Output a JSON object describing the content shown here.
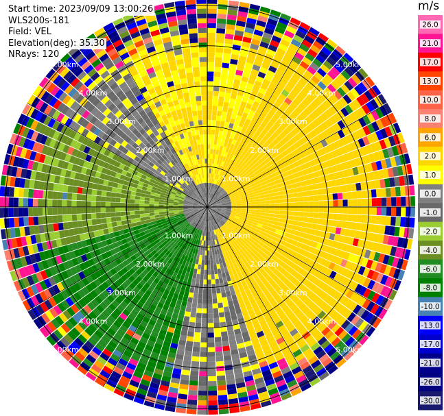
{
  "header": {
    "start_time": "Start time: 2023/09/09 13:00:26",
    "instrument": "WLS200s-181",
    "field": "Field: VEL",
    "elevation": "Elevation(deg): 35.30",
    "nrays": "NRays: 120"
  },
  "colorbar": {
    "unit": "m/s",
    "labels": [
      "26.0",
      "21.0",
      "17.0",
      "13.0",
      "10.0",
      "8.0",
      "6.0",
      "2.0",
      "1.0",
      "0.0",
      "-1.0",
      "-2.0",
      "-4.0",
      "-6.0",
      "-8.0",
      "-10.0",
      "-13.0",
      "-17.0",
      "-21.0",
      "-26.0",
      "-30.0"
    ],
    "colors": [
      "#ff69b4",
      "#ff1493",
      "#ff0000",
      "#ff4500",
      "#ff6347",
      "#fa8072",
      "#ffa500",
      "#ffd700",
      "#ffff00",
      "#808080",
      "#696969",
      "#9acd32",
      "#6b8e23",
      "#228b22",
      "#008000",
      "#4682b4",
      "#0000ff",
      "#0000cd",
      "#00008b",
      "#000080",
      "#191970"
    ]
  },
  "chart_data": {
    "type": "heatmap",
    "projection": "polar PPI",
    "field": "VEL",
    "nrays": 120,
    "elevation_deg": 35.3,
    "range_ring_labels": [
      "1.00km",
      "2.00km",
      "3.00km",
      "4.00km",
      "5.00km"
    ],
    "ring_ranges_km": [
      1,
      2,
      3,
      4,
      5
    ],
    "color_scale": {
      "unit": "m/s",
      "min": -30,
      "max": 26
    },
    "sectors": [
      {
        "region": "north-northeast to east",
        "dominant_value_ms": 2,
        "color_name": "yellow/orange"
      },
      {
        "region": "east to south-east",
        "dominant_value_ms": 4,
        "color_name": "orange/yellow"
      },
      {
        "region": "south-west to west",
        "dominant_value_ms": -6,
        "color_name": "green"
      },
      {
        "region": "west to north-west",
        "dominant_value_ms": -2,
        "color_name": "olive/yellow-green"
      },
      {
        "region": "near-zero band",
        "dominant_value_ms": 0,
        "color_name": "gray"
      },
      {
        "region": "outer ranges beyond 4 km",
        "dominant_value_ms": null,
        "color_name": "noise (multicolor)"
      }
    ]
  }
}
